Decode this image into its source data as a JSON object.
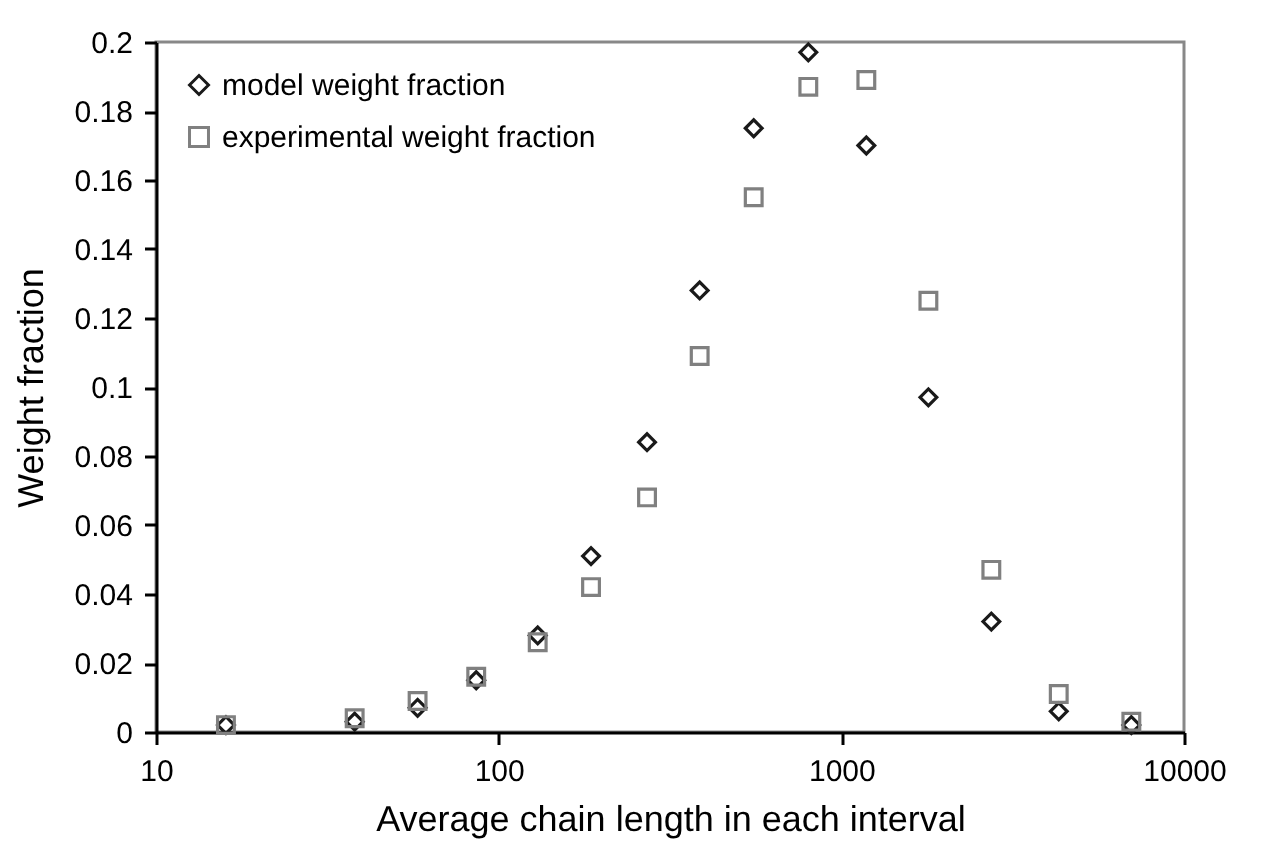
{
  "chart_data": {
    "type": "scatter",
    "xlabel": "Average chain length in each interval",
    "ylabel": "Weight fraction",
    "x": [
      16,
      38,
      58,
      86,
      130,
      186,
      271,
      386,
      555,
      801,
      1183,
      1795,
      2740,
      4310,
      7020
    ],
    "series": [
      {
        "name": "model weight fraction",
        "color": "#1a1a1a",
        "marker": "diamond",
        "values": [
          0.002,
          0.003,
          0.007,
          0.015,
          0.028,
          0.051,
          0.084,
          0.128,
          0.175,
          0.197,
          0.17,
          0.097,
          0.032,
          0.006,
          0.002
        ]
      },
      {
        "name": "experimental weight fraction",
        "color": "#808080",
        "marker": "square",
        "values": [
          0.002,
          0.004,
          0.009,
          0.016,
          0.026,
          0.042,
          0.068,
          0.109,
          0.155,
          0.187,
          0.189,
          0.125,
          0.047,
          0.011,
          0.003
        ]
      }
    ],
    "log": "x",
    "xlim": [
      10,
      10000
    ],
    "xticks": [
      10,
      100,
      1000,
      10000
    ],
    "ylim": [
      0,
      0.2
    ],
    "yticks": [
      0,
      0.02,
      0.04,
      0.06,
      0.08,
      0.1,
      0.12,
      0.14,
      0.16,
      0.18,
      0.2
    ],
    "grid": false,
    "legend": "top left"
  }
}
